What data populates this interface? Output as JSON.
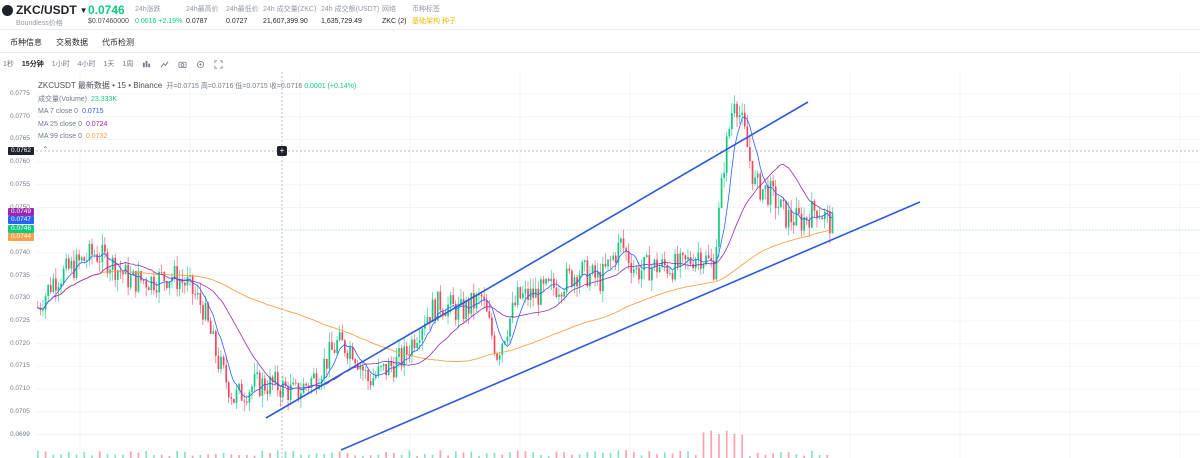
{
  "header": {
    "pair": "ZKC/USDT",
    "subtitle": "Boundless价格",
    "last_price": "0.0746",
    "usd_price": "$0.07460000",
    "stats": [
      {
        "label": "24h涨跌",
        "value": "0.0016 +2.19%",
        "color": "green"
      },
      {
        "label": "24h最高价",
        "value": "0.0787",
        "color": "default"
      },
      {
        "label": "24h最低价",
        "value": "0.0727",
        "color": "default"
      },
      {
        "label": "24h 成交量(ZKC)",
        "value": "21,607,399.90",
        "color": "default"
      },
      {
        "label": "24h 成交额(USDT)",
        "value": "1,635,729.49",
        "color": "default"
      },
      {
        "label": "网络",
        "value": "ZKC (2)",
        "color": "default"
      },
      {
        "label": "币种标签",
        "value": "基础架构 种子",
        "color": "orange"
      }
    ]
  },
  "section_tabs": [
    "币种信息",
    "交易数据",
    "代币检测"
  ],
  "intervals": [
    "1秒",
    "15分钟",
    "1小时",
    "4小时",
    "1天",
    "1周"
  ],
  "active_interval": "15分钟",
  "toolbar_icons": [
    "chart-type-icon",
    "indicators-icon",
    "screenshot-icon",
    "settings-icon",
    "fullscreen-icon"
  ],
  "legend": {
    "title": "ZKCUSDT 最新数据 • 15 • Binance",
    "open": "开=0.0715",
    "high": "高=0.0716",
    "low": "低=0.0715",
    "close": "收=0.0716",
    "change": "0.0001 (+0.14%)",
    "volume_label": "成交量(Volume)",
    "volume_value": "23.333K",
    "ma7_label": "MA 7 close 0",
    "ma7_value": "0.0715",
    "ma25_label": "MA 25 close 0",
    "ma25_value": "0.0724",
    "ma99_label": "MA 99 close 0",
    "ma99_value": "0.0732"
  },
  "colors": {
    "up": "#0ecb81",
    "down": "#f6465d",
    "ma7": "#2962ff",
    "ma25": "#9c27b0",
    "ma99": "#f7a24a",
    "trendline": "#2a5bd7"
  },
  "crosshair_price": "0.0762",
  "price_tags": [
    {
      "value": "0.0749",
      "color": "#9c27b0"
    },
    {
      "value": "0.0747",
      "color": "#2962ff"
    },
    {
      "value": "0.0746",
      "color": "#0ecb81"
    },
    {
      "value": "0.0744",
      "color": "#f7a24a"
    }
  ],
  "chart_data": {
    "type": "candlestick",
    "symbol": "ZKCUSDT",
    "interval": "15",
    "exchange": "Binance",
    "y_ticks": [
      "0.0775",
      "0.0770",
      "0.0765",
      "0.0760",
      "0.0755",
      "0.0750",
      "0.0745",
      "0.0740",
      "0.0735",
      "0.0730",
      "0.0725",
      "0.0720",
      "0.0715",
      "0.0710",
      "0.0705",
      "0.0699"
    ],
    "ylim": [
      0.0699,
      0.0778
    ],
    "annotations": [
      "ascending channel upper trendline",
      "ascending channel lower trendline"
    ]
  }
}
